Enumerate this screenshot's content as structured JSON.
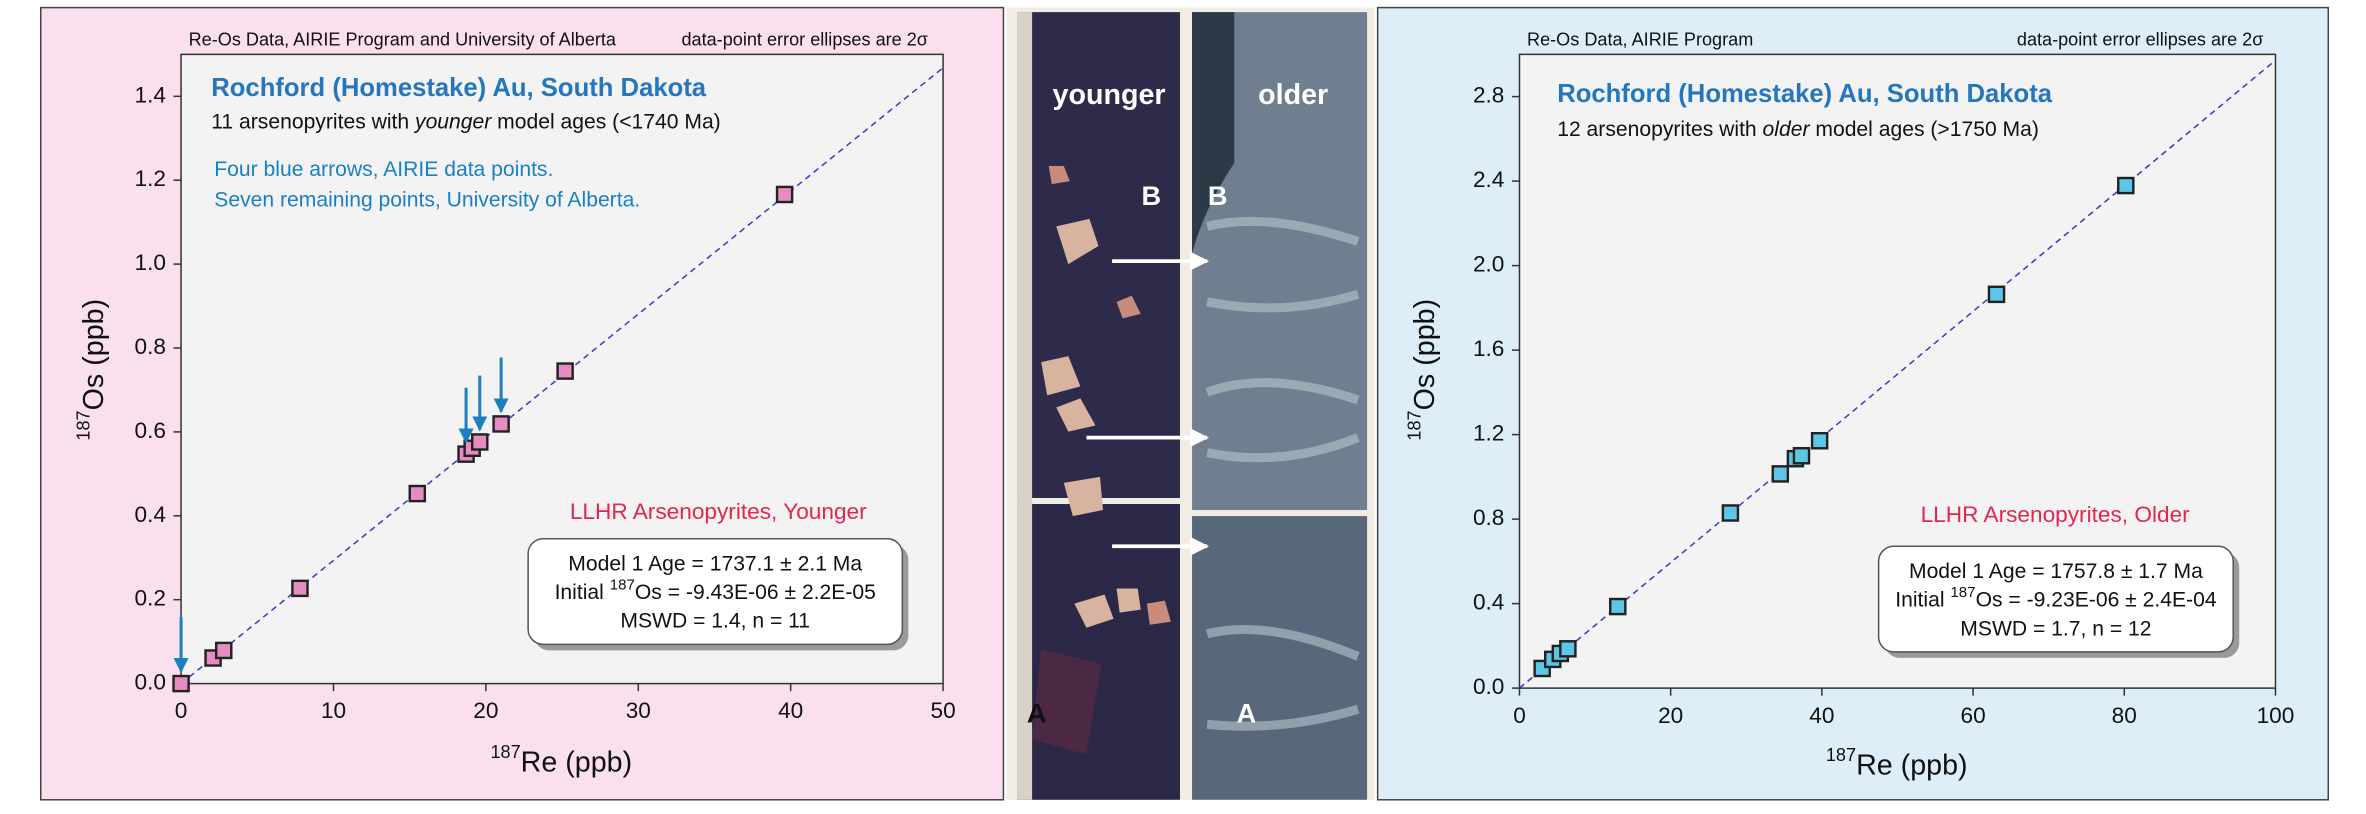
{
  "chart_data": [
    {
      "type": "scatter",
      "header_left": "Re-Os Data, AIRIE Program and University of Alberta",
      "header_right": "data-point error ellipses are 2σ",
      "title": "Rochford (Homestake) Au, South Dakota",
      "subtitle": [
        "11 arsenopyrites with ",
        "younger",
        " model ages (<1740 Ma)"
      ],
      "notes": [
        "Four blue arrows, AIRIE data points.",
        "Seven remaining points, University of Alberta."
      ],
      "fit_label": "LLHR Arsenopyrites, Younger",
      "stats": [
        [
          "Model 1 Age = 1737.1 ± 2.1 Ma"
        ],
        [
          "Initial ",
          "187",
          "Os = -9.43E-06 ± 2.2E-05"
        ],
        [
          "MSWD = 1.4, n = 11"
        ]
      ],
      "x_label": [
        "187",
        "Re (ppb)"
      ],
      "y_label": [
        "187",
        "Os (ppb)"
      ],
      "x": [
        0,
        2.1,
        2.8,
        7.8,
        15.5,
        18.7,
        19.1,
        19.6,
        21.0,
        25.2,
        39.6
      ],
      "values": [
        0.0,
        0.061,
        0.079,
        0.227,
        0.453,
        0.547,
        0.561,
        0.576,
        0.619,
        0.745,
        1.166
      ],
      "color": "#e68cc0",
      "fit_line": {
        "x": [
          0,
          50
        ],
        "values": [
          0,
          1.468
        ]
      },
      "xlim": [
        0,
        50
      ],
      "ylim": [
        0,
        1.5
      ],
      "xticks": [
        0,
        10,
        20,
        30,
        40,
        50
      ],
      "yticks": [
        {
          "value": 0,
          "label": "0.0"
        },
        0.2,
        0.4,
        0.6,
        0.8,
        {
          "value": 1,
          "label": "1.0"
        },
        1.2,
        1.4
      ]
    },
    {
      "type": "scatter",
      "header_left": "Re-Os Data, AIRIE Program",
      "header_right": "data-point error ellipses are 2σ",
      "title": "Rochford (Homestake) Au, South Dakota",
      "subtitle": [
        "12 arsenopyrites with ",
        "older",
        " model ages (>1750 Ma)"
      ],
      "fit_label": "LLHR Arsenopyrites, Older",
      "stats": [
        [
          "Model 1 Age = 1757.8 ± 1.7 Ma"
        ],
        [
          "Initial ",
          "187",
          "Os = -9.23E-06 ± 2.4E-04"
        ],
        [
          "MSWD = 1.7, n = 12"
        ]
      ],
      "x_label": [
        "187",
        "Re (ppb)"
      ],
      "y_label": [
        "187",
        "Os (ppb)"
      ],
      "x": [
        3.0,
        4.4,
        5.4,
        6.4,
        13.0,
        27.9,
        34.5,
        36.5,
        37.3,
        39.7,
        63.1,
        80.2
      ],
      "values": [
        0.093,
        0.136,
        0.164,
        0.186,
        0.386,
        0.829,
        1.014,
        1.086,
        1.1,
        1.171,
        1.864,
        2.379
      ],
      "color": "#5cc6e6",
      "fit_line": {
        "x": [
          0,
          100
        ],
        "values": [
          0,
          2.972
        ]
      },
      "xlim": [
        0,
        100
      ],
      "ylim": [
        0,
        3.0
      ],
      "xticks": [
        0,
        20,
        40,
        60,
        80,
        100
      ],
      "yticks": [
        {
          "value": 0,
          "label": "0.0"
        },
        0.4,
        0.8,
        1.2,
        1.6,
        {
          "value": 2,
          "label": "2.0"
        },
        2.4,
        2.8
      ]
    }
  ],
  "photo": {
    "left_label": "younger",
    "right_label": "older",
    "left_top": "B",
    "right_top": "B",
    "left_bottom": "A",
    "right_bottom": "A"
  }
}
